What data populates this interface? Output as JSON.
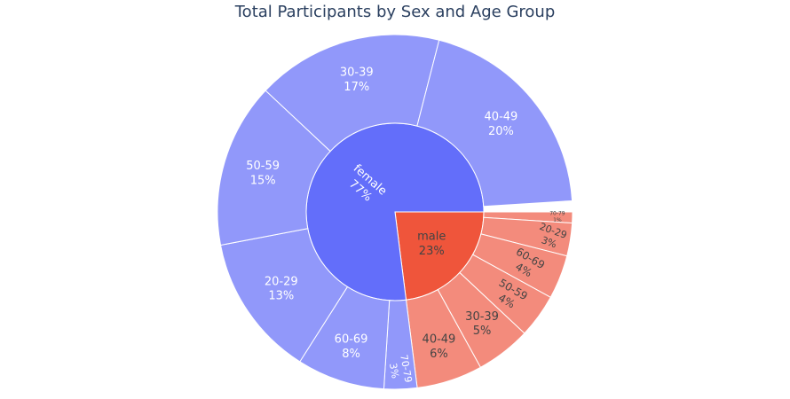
{
  "chart_data": {
    "type": "sunburst",
    "title": "Total Participants by Sex and Age Group",
    "start_angle_deg": 0,
    "direction": "clockwise",
    "colors": {
      "female_inner": "#636efa",
      "female_outer": "#9198fa",
      "male_inner": "#ef553b",
      "male_outer": "#f38b7c",
      "label_light": "#ffffff",
      "label_dark": "#444444",
      "border": "#ffffff"
    },
    "groups": [
      {
        "name": "male",
        "percent_label": "23%",
        "value": 23,
        "children": [
          {
            "label": "70-79",
            "percent_label": "1%",
            "value": 1
          },
          {
            "label": "20-29",
            "percent_label": "3%",
            "value": 3
          },
          {
            "label": "60-69",
            "percent_label": "4%",
            "value": 4
          },
          {
            "label": "50-59",
            "percent_label": "4%",
            "value": 4
          },
          {
            "label": "30-39",
            "percent_label": "5%",
            "value": 5
          },
          {
            "label": "40-49",
            "percent_label": "6%",
            "value": 6
          }
        ]
      },
      {
        "name": "female",
        "percent_label": "77%",
        "value": 77,
        "children": [
          {
            "label": "70-79",
            "percent_label": "3%",
            "value": 3
          },
          {
            "label": "60-69",
            "percent_label": "8%",
            "value": 8
          },
          {
            "label": "20-29",
            "percent_label": "13%",
            "value": 13
          },
          {
            "label": "50-59",
            "percent_label": "15%",
            "value": 15
          },
          {
            "label": "30-39",
            "percent_label": "17%",
            "value": 17
          },
          {
            "label": "40-49",
            "percent_label": "20%",
            "value": 20
          }
        ]
      }
    ]
  }
}
